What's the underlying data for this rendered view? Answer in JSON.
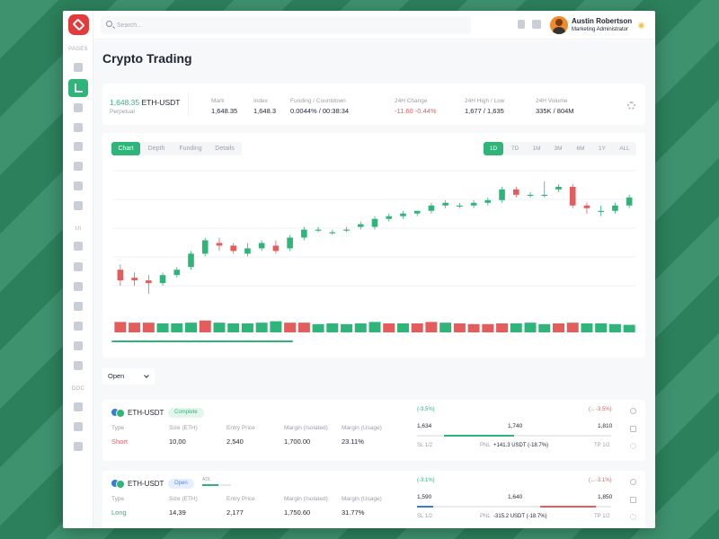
{
  "sidebar": {
    "sections": [
      "PAGES",
      "UI",
      "DOC"
    ]
  },
  "search": {
    "placeholder": "Search..."
  },
  "user": {
    "name": "Austin Robertson",
    "role": "Marketing Administrator"
  },
  "page": {
    "title": "Crypto Trading"
  },
  "ticker": {
    "price": "1,648.35",
    "pair": "ETH-USDT",
    "type": "Perpetual",
    "stats": [
      {
        "label": "Mark",
        "value": "1,648.35"
      },
      {
        "label": "Index",
        "value": "1,648.3"
      },
      {
        "label": "Funding / Countdown",
        "value": "0.0044% / 00:38:34"
      },
      {
        "label": "24H Change",
        "value": "-11.60 -0.44%"
      },
      {
        "label": "24H High / Low",
        "value": "1,677 / 1,635"
      },
      {
        "label": "24H Volume",
        "value": "335K / 804M"
      }
    ]
  },
  "chart_tabs": [
    "Chart",
    "Depth",
    "Funding",
    "Details"
  ],
  "timeframes": [
    "1D",
    "7D",
    "1M",
    "3M",
    "6M",
    "1Y",
    "ALL"
  ],
  "colors": {
    "accent": "#2fb57a",
    "up": "#2fb57a",
    "down": "#e35d5d"
  },
  "chart_data": {
    "type": "candlestick",
    "note_units": "relative price units (no axis labels shown)",
    "candles": [
      {
        "o": 42,
        "c": 38,
        "h": 44,
        "l": 36
      },
      {
        "o": 39,
        "c": 38,
        "h": 41,
        "l": 36
      },
      {
        "o": 38,
        "c": 37,
        "h": 40,
        "l": 33
      },
      {
        "o": 37,
        "c": 40,
        "h": 41,
        "l": 36
      },
      {
        "o": 40,
        "c": 42,
        "h": 43,
        "l": 39
      },
      {
        "o": 43,
        "c": 48,
        "h": 49,
        "l": 42
      },
      {
        "o": 48,
        "c": 53,
        "h": 54,
        "l": 47
      },
      {
        "o": 52,
        "c": 51,
        "h": 54,
        "l": 49
      },
      {
        "o": 51,
        "c": 49,
        "h": 52,
        "l": 48
      },
      {
        "o": 48,
        "c": 50,
        "h": 52,
        "l": 47
      },
      {
        "o": 50,
        "c": 52,
        "h": 53,
        "l": 49
      },
      {
        "o": 51,
        "c": 49,
        "h": 53,
        "l": 48
      },
      {
        "o": 50,
        "c": 54,
        "h": 55,
        "l": 49
      },
      {
        "o": 54,
        "c": 57,
        "h": 58,
        "l": 53
      },
      {
        "o": 57,
        "c": 57,
        "h": 58,
        "l": 56
      },
      {
        "o": 56,
        "c": 56,
        "h": 57,
        "l": 55
      },
      {
        "o": 57,
        "c": 57,
        "h": 58,
        "l": 56
      },
      {
        "o": 58,
        "c": 59,
        "h": 60,
        "l": 57
      },
      {
        "o": 58,
        "c": 61,
        "h": 62,
        "l": 57
      },
      {
        "o": 61,
        "c": 62,
        "h": 63,
        "l": 60
      },
      {
        "o": 62,
        "c": 63,
        "h": 64,
        "l": 61
      },
      {
        "o": 63,
        "c": 64,
        "h": 64,
        "l": 62
      },
      {
        "o": 64,
        "c": 66,
        "h": 67,
        "l": 63
      },
      {
        "o": 66,
        "c": 67,
        "h": 68,
        "l": 65
      },
      {
        "o": 66,
        "c": 66,
        "h": 67,
        "l": 65
      },
      {
        "o": 66,
        "c": 67,
        "h": 68,
        "l": 65
      },
      {
        "o": 67,
        "c": 68,
        "h": 69,
        "l": 66
      },
      {
        "o": 68,
        "c": 72,
        "h": 73,
        "l": 67
      },
      {
        "o": 72,
        "c": 70,
        "h": 73,
        "l": 69
      },
      {
        "o": 70,
        "c": 70,
        "h": 71,
        "l": 69
      },
      {
        "o": 70,
        "c": 70,
        "h": 75,
        "l": 69
      },
      {
        "o": 72,
        "c": 73,
        "h": 74,
        "l": 71
      },
      {
        "o": 73,
        "c": 66,
        "h": 74,
        "l": 65
      },
      {
        "o": 66,
        "c": 65,
        "h": 67,
        "l": 63
      },
      {
        "o": 64,
        "c": 64,
        "h": 66,
        "l": 62
      },
      {
        "o": 64,
        "c": 66,
        "h": 67,
        "l": 63
      },
      {
        "o": 66,
        "c": 69,
        "h": 70,
        "l": 65
      }
    ],
    "volume": [
      {
        "v": 6,
        "d": "down"
      },
      {
        "v": 5.5,
        "d": "down"
      },
      {
        "v": 5.5,
        "d": "down"
      },
      {
        "v": 5,
        "d": "up"
      },
      {
        "v": 5,
        "d": "up"
      },
      {
        "v": 5.5,
        "d": "up"
      },
      {
        "v": 7,
        "d": "down"
      },
      {
        "v": 5.5,
        "d": "up"
      },
      {
        "v": 5,
        "d": "up"
      },
      {
        "v": 5,
        "d": "up"
      },
      {
        "v": 5.5,
        "d": "up"
      },
      {
        "v": 6.5,
        "d": "up"
      },
      {
        "v": 5.5,
        "d": "down"
      },
      {
        "v": 5.5,
        "d": "down"
      },
      {
        "v": 4.5,
        "d": "up"
      },
      {
        "v": 5,
        "d": "up"
      },
      {
        "v": 4.5,
        "d": "up"
      },
      {
        "v": 5,
        "d": "up"
      },
      {
        "v": 6,
        "d": "up"
      },
      {
        "v": 5,
        "d": "down"
      },
      {
        "v": 5,
        "d": "up"
      },
      {
        "v": 5,
        "d": "down"
      },
      {
        "v": 6,
        "d": "down"
      },
      {
        "v": 5.5,
        "d": "up"
      },
      {
        "v": 5,
        "d": "down"
      },
      {
        "v": 4.5,
        "d": "down"
      },
      {
        "v": 4.5,
        "d": "down"
      },
      {
        "v": 5,
        "d": "down"
      },
      {
        "v": 5,
        "d": "up"
      },
      {
        "v": 5.5,
        "d": "up"
      },
      {
        "v": 4.5,
        "d": "up"
      },
      {
        "v": 5,
        "d": "down"
      },
      {
        "v": 5.5,
        "d": "down"
      },
      {
        "v": 5,
        "d": "up"
      },
      {
        "v": 5,
        "d": "up"
      },
      {
        "v": 4.5,
        "d": "up"
      },
      {
        "v": 4,
        "d": "up"
      }
    ]
  },
  "filter": {
    "selected": "Open"
  },
  "positions": [
    {
      "pair": "ETH-USDT",
      "status": "Complete",
      "adl": "",
      "columns": [
        {
          "label": "Type",
          "value": "Short"
        },
        {
          "label": "Size (ETH)",
          "value": "10,00"
        },
        {
          "label": "Entry Price",
          "value": "2,540"
        },
        {
          "label": "Margin (Isolated)",
          "value": "1,700.00"
        },
        {
          "label": "Margin (Usage)",
          "value": "23.11%"
        }
      ],
      "pct_left": "(-3.5%)",
      "pct_right": "(←-3.5%)",
      "levels": [
        "1,634",
        "1,740",
        "1,810"
      ],
      "sl": "SL 1/2",
      "pnl_label": "PNL",
      "pnl": "+141.3 USDT (-18.7%)",
      "tp": "TP 1/2",
      "progress": 0.5
    },
    {
      "pair": "ETH-USDT",
      "status": "Open",
      "adl": "ADL",
      "columns": [
        {
          "label": "Type",
          "value": "Long"
        },
        {
          "label": "Size (ETH)",
          "value": "14,39"
        },
        {
          "label": "Entry Price",
          "value": "2,177"
        },
        {
          "label": "Margin (Isolated)",
          "value": "1,750.60"
        },
        {
          "label": "Margin (Usage)",
          "value": "31.77%"
        }
      ],
      "pct_left": "(-3.1%)",
      "pct_right": "(←-3.1%)",
      "levels": [
        "1,590",
        "1,640",
        "1,850"
      ],
      "sl": "SL 1/2",
      "pnl_label": "PNL",
      "pnl": "-315.2 USDT (-18.7%)",
      "tp": "TP 1/2",
      "progress": 0.42
    }
  ]
}
